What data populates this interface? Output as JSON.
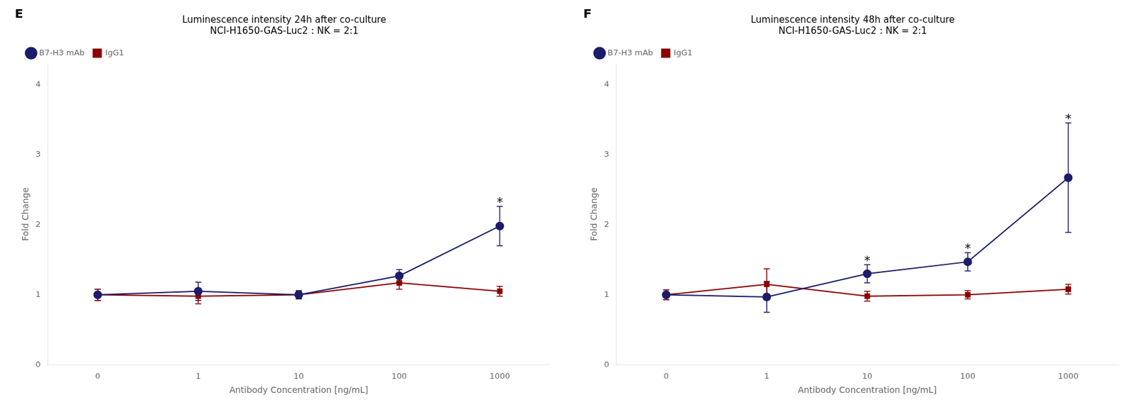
{
  "chart_data": [
    {
      "type": "line",
      "title": "Luminescence intensity 24h after co-culture\nNCI-H1650-GAS-Luc2 : NK = 2:1",
      "x_label": "Antibody Concentration [ng/mL]",
      "y_label": "Fold Change",
      "categories": [
        "0",
        "1",
        "10",
        "100",
        "1000"
      ],
      "series": [
        {
          "name": "B7-H3 mAb",
          "color": "#1c1c6b",
          "marker": "circle",
          "line_style": "solid",
          "values": [
            1.0,
            1.05,
            1.0,
            1.27,
            1.98
          ],
          "errors": [
            0.08,
            0.13,
            0.06,
            0.09,
            0.28
          ]
        },
        {
          "name": "IgG1",
          "color": "#8b0000",
          "marker": "square",
          "line_style": "solid",
          "values": [
            1.0,
            0.98,
            1.0,
            1.17,
            1.05
          ],
          "errors": [
            0.08,
            0.11,
            0.05,
            0.09,
            0.07
          ]
        }
      ],
      "ylim": [
        0,
        4.3
      ],
      "yticks": [
        0,
        1,
        2,
        3,
        4
      ],
      "grid": false,
      "legend": "upper left",
      "annotations": [
        {
          "text": "E"
        },
        {
          "text": "*",
          "category": "1000",
          "series": "B7-H3 mAb"
        }
      ]
    },
    {
      "type": "line",
      "title": "Luminescence intensity 48h after co-culture\nNCI-H1650-GAS-Luc2 : NK = 2:1",
      "x_label": "Antibody Concentration [ng/mL]",
      "y_label": "Fold Change",
      "categories": [
        "0",
        "1",
        "10",
        "100",
        "1000"
      ],
      "series": [
        {
          "name": "B7-H3 mAb",
          "color": "#1c1c6b",
          "marker": "circle",
          "line_style": "solid",
          "values": [
            1.0,
            0.97,
            1.3,
            1.47,
            2.67
          ],
          "errors": [
            0.07,
            0.22,
            0.13,
            0.13,
            0.78
          ]
        },
        {
          "name": "IgG1",
          "color": "#8b0000",
          "marker": "square",
          "line_style": "solid",
          "values": [
            1.0,
            1.15,
            0.98,
            1.0,
            1.08
          ],
          "errors": [
            0.07,
            0.22,
            0.07,
            0.06,
            0.07
          ]
        }
      ],
      "ylim": [
        0,
        4.3
      ],
      "yticks": [
        0,
        1,
        2,
        3,
        4
      ],
      "grid": false,
      "legend": "upper left",
      "annotations": [
        {
          "text": "F"
        },
        {
          "text": "*",
          "category": "10",
          "series": "B7-H3 mAb"
        },
        {
          "text": "*",
          "category": "100",
          "series": "B7-H3 mAb"
        },
        {
          "text": "*",
          "category": "1000",
          "series": "B7-H3 mAb"
        }
      ]
    }
  ]
}
